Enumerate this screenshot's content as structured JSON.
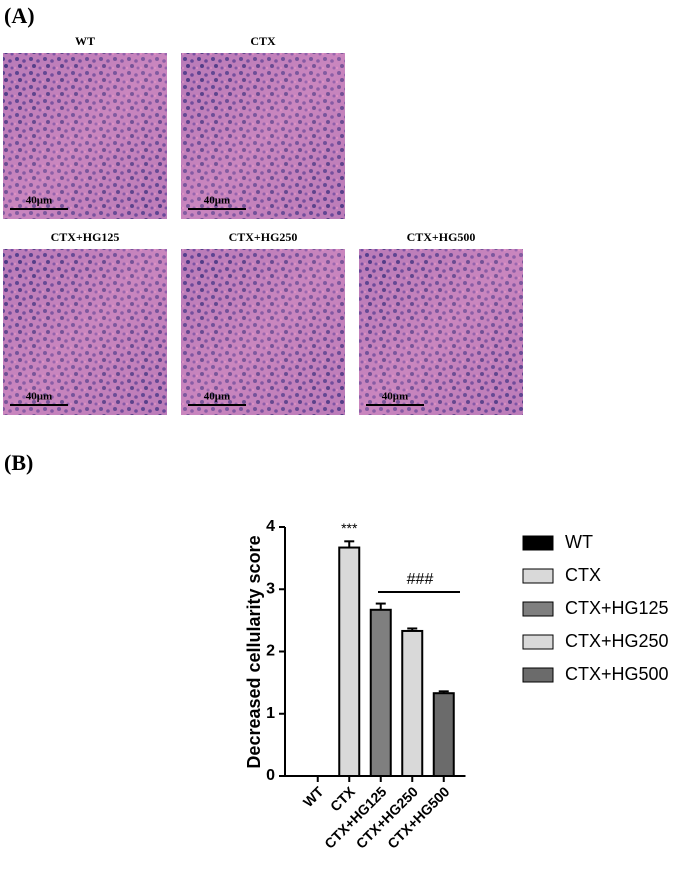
{
  "panel_a": {
    "label": "(A)",
    "images": [
      {
        "title": "WT",
        "scale": "40μm"
      },
      {
        "title": "CTX",
        "scale": "40μm"
      },
      {
        "title": "CTX+HG125",
        "scale": "40μm"
      },
      {
        "title": "CTX+HG250",
        "scale": "40μm"
      },
      {
        "title": "CTX+HG500",
        "scale": "40μm"
      }
    ]
  },
  "panel_b_label": "(B)",
  "chart_data": {
    "type": "bar",
    "y_label": "Decreased cellularity score",
    "categories": [
      "WT",
      "CTX",
      "CTX+HG125",
      "CTX+HG250",
      "CTX+HG500"
    ],
    "values": [
      0,
      3.67,
      2.67,
      2.33,
      1.33
    ],
    "errors": [
      0,
      0.1,
      0.1,
      0.04,
      0.03
    ],
    "colors": [
      "#000000",
      "#d9d9d9",
      "#7f7f7f",
      "#d9d9d9",
      "#6b6b6b"
    ],
    "ylim": [
      0,
      4
    ],
    "yticks": [
      0,
      1,
      2,
      3,
      4
    ],
    "annotations": [
      "***",
      "###"
    ],
    "legend": "right"
  }
}
